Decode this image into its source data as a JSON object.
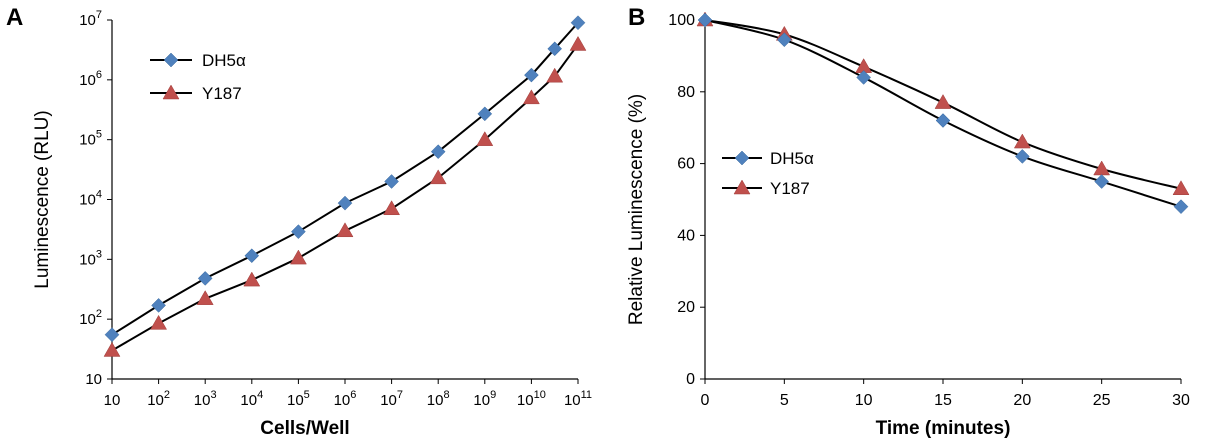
{
  "chart_data": [
    {
      "type": "line",
      "panel_label": "A",
      "xlabel": "Cells/Well",
      "ylabel": "Luminescence (RLU)",
      "x_scale": "log",
      "y_scale": "log",
      "x_ticks": [
        {
          "base": "10",
          "exp": ""
        },
        {
          "base": "10",
          "exp": "2"
        },
        {
          "base": "10",
          "exp": "3"
        },
        {
          "base": "10",
          "exp": "4"
        },
        {
          "base": "10",
          "exp": "5"
        },
        {
          "base": "10",
          "exp": "6"
        },
        {
          "base": "10",
          "exp": "7"
        },
        {
          "base": "10",
          "exp": "8"
        },
        {
          "base": "10",
          "exp": "9"
        },
        {
          "base": "10",
          "exp": "10"
        },
        {
          "base": "10",
          "exp": "11"
        }
      ],
      "y_ticks": [
        {
          "base": "10",
          "exp": ""
        },
        {
          "base": "10",
          "exp": "2"
        },
        {
          "base": "10",
          "exp": "3"
        },
        {
          "base": "10",
          "exp": "4"
        },
        {
          "base": "10",
          "exp": "5"
        },
        {
          "base": "10",
          "exp": "6"
        },
        {
          "base": "10",
          "exp": "7"
        }
      ],
      "xlim": [
        10,
        100000000000
      ],
      "ylim": [
        10,
        10000000
      ],
      "legend_position": "top-left",
      "series": [
        {
          "name": "DH5α",
          "marker": "diamond",
          "color": "#4F81BD",
          "x": [
            10,
            100,
            1000,
            10000,
            100000,
            1000000,
            10000000,
            100000000,
            1000000000,
            10000000000,
            31622776602,
            100000000000
          ],
          "y": [
            55,
            170,
            480,
            1150,
            2900,
            8700,
            20000,
            63000,
            270000,
            1200000,
            3300000,
            9000000
          ]
        },
        {
          "name": "Y187",
          "marker": "triangle",
          "color": "#C0504D",
          "x": [
            10,
            100,
            1000,
            10000,
            100000,
            1000000,
            10000000,
            100000000,
            1000000000,
            10000000000,
            31622776602,
            100000000000
          ],
          "y": [
            30,
            85,
            220,
            450,
            1050,
            3000,
            7000,
            23000,
            100000,
            500000,
            1150000,
            3900000
          ]
        }
      ]
    },
    {
      "type": "line",
      "panel_label": "B",
      "xlabel": "Time (minutes)",
      "ylabel": "Relative Luminescence (%)",
      "x_ticks": [
        "0",
        "5",
        "10",
        "15",
        "20",
        "25",
        "30"
      ],
      "y_ticks": [
        "0",
        "20",
        "40",
        "60",
        "80",
        "100"
      ],
      "xlim": [
        0,
        30
      ],
      "ylim": [
        0,
        100
      ],
      "legend_position": "center-left",
      "series": [
        {
          "name": "DH5α",
          "marker": "diamond",
          "color": "#4F81BD",
          "x": [
            0,
            5,
            10,
            15,
            20,
            25,
            30
          ],
          "y": [
            100,
            94.5,
            84,
            72,
            62,
            55,
            48
          ]
        },
        {
          "name": "Y187",
          "marker": "triangle",
          "color": "#C0504D",
          "x": [
            0,
            5,
            10,
            15,
            20,
            25,
            30
          ],
          "y": [
            100,
            96,
            87,
            77,
            66,
            58.5,
            53
          ]
        }
      ]
    }
  ]
}
